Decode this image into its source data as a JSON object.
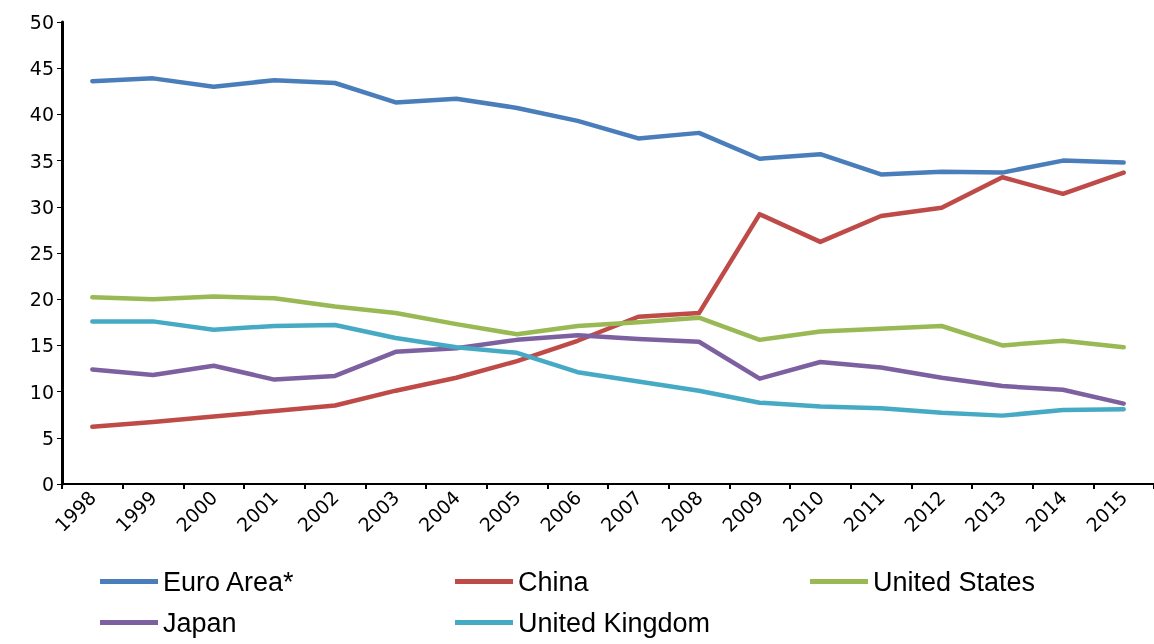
{
  "chart_data": {
    "type": "line",
    "categories": [
      "1998",
      "1999",
      "2000",
      "2001",
      "2002",
      "2003",
      "2004",
      "2005",
      "2006",
      "2007",
      "2008",
      "2009",
      "2010",
      "2011",
      "2012",
      "2013",
      "2014",
      "2015"
    ],
    "series": [
      {
        "name": "Euro Area*",
        "color": "#4a7ebb",
        "values": [
          43.6,
          43.9,
          43.0,
          43.7,
          43.4,
          41.3,
          41.7,
          40.7,
          39.3,
          37.4,
          38.0,
          35.2,
          35.7,
          33.5,
          33.8,
          33.7,
          35.0,
          34.8
        ]
      },
      {
        "name": "China",
        "color": "#be4b48",
        "values": [
          6.2,
          6.7,
          7.3,
          7.9,
          8.5,
          10.1,
          11.5,
          13.3,
          15.5,
          18.1,
          18.5,
          29.2,
          26.2,
          29.0,
          29.9,
          33.2,
          31.4,
          33.7
        ]
      },
      {
        "name": "United States",
        "color": "#98b954",
        "values": [
          20.2,
          20.0,
          20.3,
          20.1,
          19.2,
          18.5,
          17.3,
          16.2,
          17.1,
          17.5,
          18.0,
          15.6,
          16.5,
          16.8,
          17.1,
          15.0,
          15.5,
          14.8
        ]
      },
      {
        "name": "Japan",
        "color": "#7d60a0",
        "values": [
          12.4,
          11.8,
          12.8,
          11.3,
          11.7,
          14.3,
          14.7,
          15.6,
          16.1,
          15.7,
          15.4,
          11.4,
          13.2,
          12.6,
          11.5,
          10.6,
          10.2,
          8.7
        ]
      },
      {
        "name": "United Kingdom",
        "color": "#46aac5",
        "values": [
          17.6,
          17.6,
          16.7,
          17.1,
          17.2,
          15.8,
          14.8,
          14.2,
          12.1,
          11.1,
          10.1,
          8.8,
          8.4,
          8.2,
          7.7,
          7.4,
          8.0,
          8.1
        ]
      }
    ],
    "ylim": [
      0,
      50
    ],
    "yticks": [
      0,
      5,
      10,
      15,
      20,
      25,
      30,
      35,
      40,
      45,
      50
    ],
    "grid": false,
    "legend": "bottom",
    "marker": "none",
    "line_style": "solid"
  }
}
